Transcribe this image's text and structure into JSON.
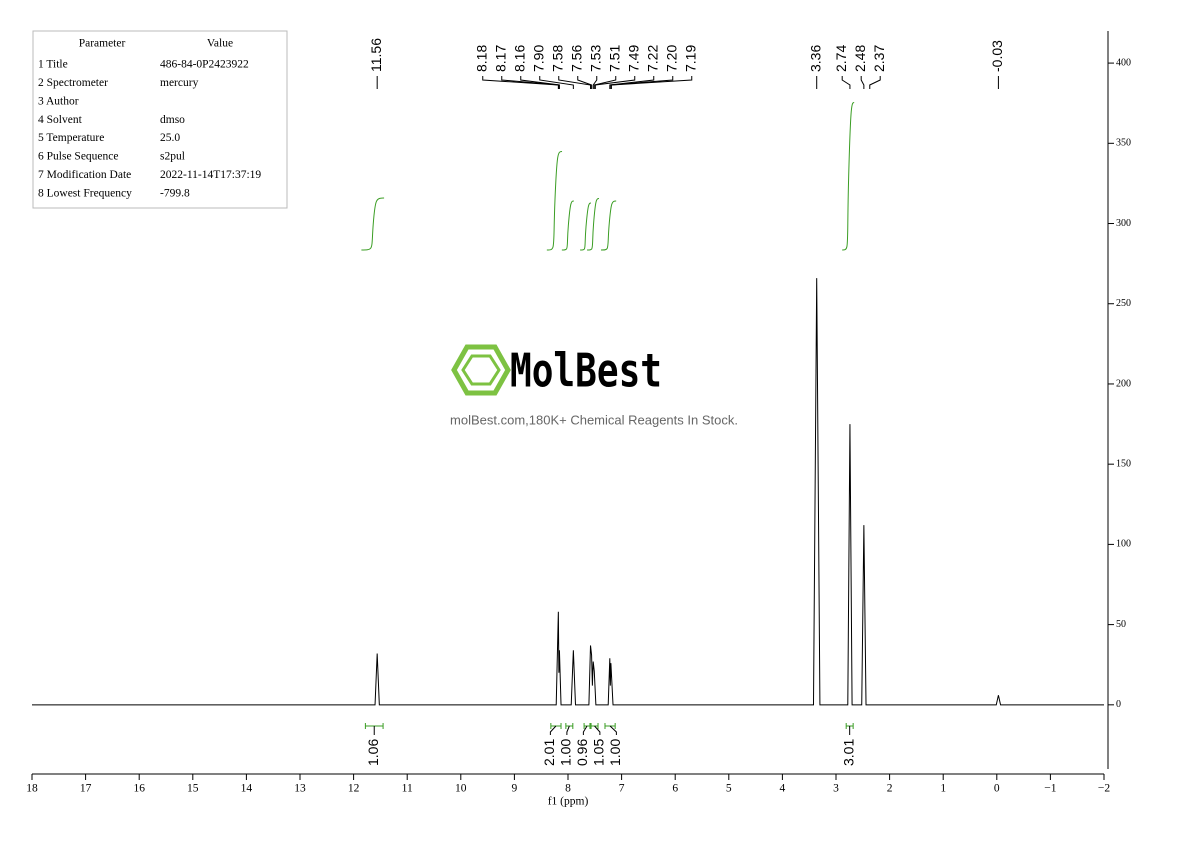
{
  "parameters": {
    "header": [
      "Parameter",
      "Value"
    ],
    "rows": [
      [
        "1 Title",
        "486-84-0P2423922"
      ],
      [
        "2 Spectrometer",
        "mercury"
      ],
      [
        "3 Author"
      ],
      [
        "4 Solvent",
        "dmso"
      ],
      [
        "5 Temperature",
        "25.0"
      ],
      [
        "6 Pulse Sequence",
        "s2pul"
      ],
      [
        "7 Modification Date",
        "2022-11-14T17:37:19"
      ],
      [
        "8 Lowest Frequency",
        "-799.8"
      ]
    ]
  },
  "watermark": {
    "brand": "MolBest",
    "tagline": "molBest.com,180K+ Chemical Reagents In Stock."
  },
  "chart_data": {
    "type": "nmr",
    "xlabel": "f1 (ppm)",
    "color": "#000000",
    "xlim": [
      18,
      -2
    ],
    "xticks": [
      18,
      17,
      16,
      15,
      14,
      13,
      12,
      11,
      10,
      9,
      8,
      7,
      6,
      5,
      4,
      3,
      2,
      1,
      0,
      {
        "value": -1,
        "label": "−1"
      },
      {
        "value": -2,
        "label": "−2"
      }
    ],
    "ylim": [
      -40,
      420
    ],
    "yticks": [
      0,
      50,
      100,
      150,
      200,
      250,
      300,
      350,
      400
    ],
    "x": [
      18,
      11.6,
      11.56,
      11.52,
      8.22,
      8.18,
      8.17,
      8.16,
      8.13,
      7.94,
      7.9,
      7.86,
      7.61,
      7.58,
      7.56,
      7.545,
      7.53,
      7.51,
      7.48,
      7.25,
      7.22,
      7.21,
      7.2,
      7.16,
      3.42,
      3.36,
      3.3,
      2.78,
      2.74,
      2.7,
      2.52,
      2.48,
      2.44,
      0.01,
      -0.03,
      -0.07,
      -2
    ],
    "values": [
      0,
      0,
      32,
      0,
      0,
      58,
      20,
      34,
      0,
      0,
      34,
      0,
      0,
      37,
      31,
      12,
      27,
      21,
      0,
      0,
      29,
      12,
      26,
      0,
      0,
      266,
      0,
      0,
      175,
      0,
      0,
      112,
      0,
      0,
      6,
      0,
      0
    ],
    "peaks": {
      "values": [
        11.56,
        8.18,
        8.17,
        8.16,
        7.9,
        7.58,
        7.56,
        7.53,
        7.51,
        7.49,
        7.22,
        7.2,
        7.19,
        3.36,
        2.74,
        2.48,
        2.37,
        -0.03
      ],
      "value_labels": [
        "11.56",
        "8.18",
        "8.17",
        "8.16",
        "7.90",
        "7.58",
        "7.56",
        "7.53",
        "7.51",
        "7.49",
        "7.22",
        "7.20",
        "7.19",
        "3.36",
        "2.74",
        "2.48",
        "2.37",
        "-0.03"
      ]
    },
    "integrals": {
      "color": "#3a9d23",
      "ranges": [
        [
          11.78,
          11.45
        ],
        [
          8.32,
          8.13
        ],
        [
          8.04,
          7.91
        ],
        [
          7.7,
          7.59
        ],
        [
          7.57,
          7.44
        ],
        [
          7.31,
          7.12
        ],
        [
          2.81,
          2.68
        ]
      ],
      "values": [
        1.06,
        2.01,
        1.0,
        0.96,
        1.05,
        1.0,
        3.01
      ],
      "value_labels": [
        "1.06",
        "2.01",
        "1.00",
        "0.96",
        "1.05",
        "1.00",
        "3.01"
      ]
    }
  }
}
